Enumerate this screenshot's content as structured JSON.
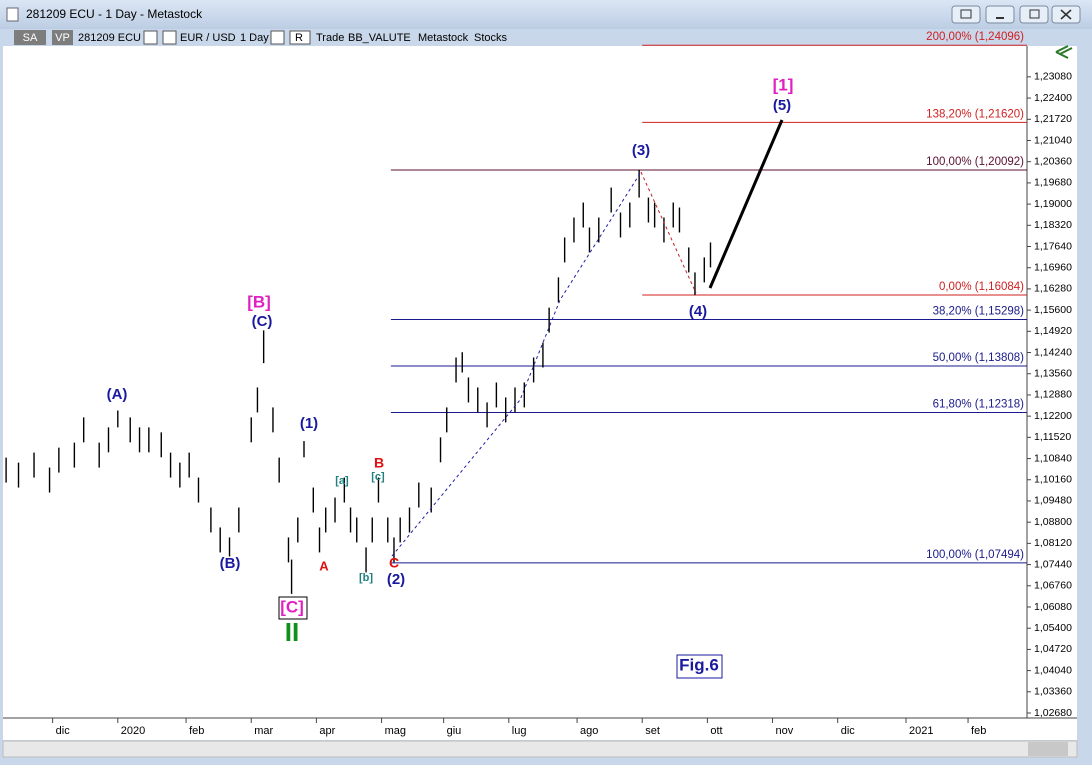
{
  "window": {
    "title": "281209 ECU - 1 Day - Metastock",
    "toolbar": [
      "SA",
      "VP",
      "281209 ECU",
      "EUR / USD",
      "1 Day",
      "R",
      "Trade",
      "BB_VALUTE",
      "Metastock",
      "Stocks"
    ]
  },
  "chart_data": {
    "type": "hilo",
    "color": "#000000",
    "x": [
      1,
      5,
      10,
      15,
      18,
      23,
      26,
      31,
      34,
      37,
      41,
      44,
      47,
      51,
      54,
      57,
      60,
      63,
      67,
      70,
      73,
      76,
      80,
      82,
      84,
      87,
      89,
      92,
      93,
      95,
      97,
      100,
      102,
      104,
      107,
      110,
      112,
      114,
      117,
      119,
      121,
      124,
      126,
      128,
      131,
      134,
      138,
      141,
      143,
      146,
      148,
      150,
      153,
      156,
      159,
      162,
      165,
      168,
      171,
      174,
      176,
      179,
      181,
      184,
      187,
      189,
      192,
      196,
      199,
      202,
      205,
      208,
      210,
      213,
      216,
      218,
      221,
      223,
      226,
      228
    ],
    "high": [
      1.1087,
      1.1071,
      1.1103,
      1.1055,
      1.1119,
      1.1135,
      1.1216,
      1.1135,
      1.1184,
      1.1238,
      1.1216,
      1.1184,
      1.1184,
      1.1168,
      1.1103,
      1.1071,
      1.1103,
      1.1023,
      1.0927,
      1.0863,
      1.0831,
      1.0927,
      1.1216,
      1.1312,
      1.1495,
      1.1248,
      1.1087,
      1.0831,
      1.076,
      1.0895,
      1.114,
      1.0991,
      1.0863,
      1.0927,
      1.0959,
      1.1023,
      1.0927,
      1.0895,
      1.0799,
      1.0895,
      1.1023,
      1.0895,
      1.0831,
      1.0895,
      1.0927,
      1.1007,
      1.0991,
      1.1152,
      1.1248,
      1.1408,
      1.1425,
      1.1344,
      1.1312,
      1.1264,
      1.1328,
      1.128,
      1.1312,
      1.1328,
      1.1408,
      1.1456,
      1.1568,
      1.1665,
      1.1793,
      1.1857,
      1.1905,
      1.1825,
      1.1857,
      1.1953,
      1.1873,
      1.1905,
      1.201,
      1.1921,
      1.1905,
      1.1857,
      1.1905,
      1.1889,
      1.1761,
      1.1681,
      1.1729,
      1.1777
    ],
    "low": [
      1.1007,
      1.0991,
      1.1023,
      1.0975,
      1.1039,
      1.1055,
      1.1136,
      1.1055,
      1.1104,
      1.1184,
      1.1136,
      1.1104,
      1.1104,
      1.1088,
      1.1023,
      1.0991,
      1.1023,
      1.0943,
      1.0847,
      1.0783,
      1.077,
      1.0847,
      1.1136,
      1.1232,
      1.139,
      1.1168,
      1.1007,
      1.0751,
      1.065,
      1.0815,
      1.1088,
      1.0911,
      1.0783,
      1.0847,
      1.0879,
      1.0943,
      1.0847,
      1.0815,
      1.0719,
      1.0815,
      1.0943,
      1.0815,
      1.0751,
      1.0815,
      1.0847,
      1.0927,
      1.0911,
      1.1072,
      1.1168,
      1.1328,
      1.136,
      1.1264,
      1.1232,
      1.1184,
      1.1248,
      1.12,
      1.1232,
      1.1248,
      1.1328,
      1.1376,
      1.1488,
      1.1585,
      1.1713,
      1.1777,
      1.1825,
      1.1745,
      1.1777,
      1.1873,
      1.1793,
      1.1825,
      1.1921,
      1.1841,
      1.1825,
      1.1777,
      1.1825,
      1.1809,
      1.1681,
      1.1608,
      1.1649,
      1.1697
    ],
    "xlim": [
      0,
      330
    ],
    "xticks": [
      {
        "value": 16,
        "label": "dic"
      },
      {
        "value": 37,
        "label": "2020"
      },
      {
        "value": 59,
        "label": "feb"
      },
      {
        "value": 80,
        "label": "mar"
      },
      {
        "value": 101,
        "label": "apr"
      },
      {
        "value": 122,
        "label": "mag"
      },
      {
        "value": 142,
        "label": "giu"
      },
      {
        "value": 163,
        "label": "lug"
      },
      {
        "value": 185,
        "label": "ago"
      },
      {
        "value": 206,
        "label": "set"
      },
      {
        "value": 227,
        "label": "ott"
      },
      {
        "value": 248,
        "label": "nov"
      },
      {
        "value": 269,
        "label": "dic"
      },
      {
        "value": 291,
        "label": "2021"
      },
      {
        "value": 311,
        "label": "feb"
      }
    ],
    "ylim": [
      1.0252,
      1.2407
    ],
    "yticks": [
      {
        "value": 1.2308,
        "label": "1,23080"
      },
      {
        "value": 1.224,
        "label": "1,22400"
      },
      {
        "value": 1.2172,
        "label": "1,21720"
      },
      {
        "value": 1.2104,
        "label": "1,21040"
      },
      {
        "value": 1.2036,
        "label": "1,20360"
      },
      {
        "value": 1.1968,
        "label": "1,19680"
      },
      {
        "value": 1.19,
        "label": "1,19000"
      },
      {
        "value": 1.1832,
        "label": "1,18320"
      },
      {
        "value": 1.1764,
        "label": "1,17640"
      },
      {
        "value": 1.1696,
        "label": "1,16960"
      },
      {
        "value": 1.1628,
        "label": "1,16280"
      },
      {
        "value": 1.156,
        "label": "1,15600"
      },
      {
        "value": 1.1492,
        "label": "1,14920"
      },
      {
        "value": 1.1424,
        "label": "1,14240"
      },
      {
        "value": 1.1356,
        "label": "1,13560"
      },
      {
        "value": 1.1288,
        "label": "1,12880"
      },
      {
        "value": 1.122,
        "label": "1,12200"
      },
      {
        "value": 1.1152,
        "label": "1,11520"
      },
      {
        "value": 1.1084,
        "label": "1,10840"
      },
      {
        "value": 1.1016,
        "label": "1,10160"
      },
      {
        "value": 1.0948,
        "label": "1,09480"
      },
      {
        "value": 1.088,
        "label": "1,08800"
      },
      {
        "value": 1.0812,
        "label": "1,08120"
      },
      {
        "value": 1.0744,
        "label": "1,07440"
      },
      {
        "value": 1.0676,
        "label": "1,06760"
      },
      {
        "value": 1.0608,
        "label": "1,06080"
      },
      {
        "value": 1.054,
        "label": "1,05400"
      },
      {
        "value": 1.0472,
        "label": "1,04720"
      },
      {
        "value": 1.0404,
        "label": "1,04040"
      },
      {
        "value": 1.0336,
        "label": "1,03360"
      },
      {
        "value": 1.0268,
        "label": "1,02680"
      }
    ],
    "levels": [
      {
        "value": 1.24096,
        "label": "200,00% (1,24096)",
        "color": "#d02020",
        "start": 206
      },
      {
        "value": 1.2162,
        "label": "138,20% (1,21620)",
        "color": "#d02020",
        "start": 206
      },
      {
        "value": 1.20092,
        "label": "100,00% (1,20092)",
        "color": "#5a1030",
        "start": 125
      },
      {
        "value": 1.16084,
        "label": "0,00% (1,16084)",
        "color": "#d02020",
        "start": 206
      },
      {
        "value": 1.15298,
        "label": "38,20% (1,15298)",
        "color": "#1a1a8c",
        "start": 125
      },
      {
        "value": 1.13808,
        "label": "50,00% (1,13808)",
        "color": "#1a1a8c",
        "start": 125
      },
      {
        "value": 1.12318,
        "label": "61,80% (1,12318)",
        "color": "#1a1a8c",
        "start": 125
      },
      {
        "value": 1.07494,
        "label": "100,00% (1,07494)",
        "color": "#1a1a8c",
        "start": 125
      }
    ],
    "annotations": [
      {
        "text": "[1]",
        "color": "#e020c0"
      },
      {
        "text": "(5)",
        "color": "#1a1aa0"
      },
      {
        "text": "(3)",
        "color": "#1a1aa0"
      },
      {
        "text": "(4)",
        "color": "#1a1aa0"
      },
      {
        "text": "[B]",
        "color": "#e020c0"
      },
      {
        "text": "(C)",
        "color": "#1a1aa0"
      },
      {
        "text": "(A)",
        "color": "#1a1aa0"
      },
      {
        "text": "(1)",
        "color": "#1a1aa0"
      },
      {
        "text": "B",
        "color": "#e01010"
      },
      {
        "text": "[c]",
        "color": "#208080"
      },
      {
        "text": "[a]",
        "color": "#208080"
      },
      {
        "text": "A",
        "color": "#e01010"
      },
      {
        "text": "(B)",
        "color": "#1a1aa0"
      },
      {
        "text": "C",
        "color": "#e01010"
      },
      {
        "text": "[b]",
        "color": "#208080"
      },
      {
        "text": "(2)",
        "color": "#1a1aa0"
      },
      {
        "text": "[C]",
        "color": "#e020c0"
      },
      {
        "text": "II",
        "color": "#10901a"
      },
      {
        "text": "Fig.6",
        "color": "#1a1aa0"
      }
    ]
  }
}
